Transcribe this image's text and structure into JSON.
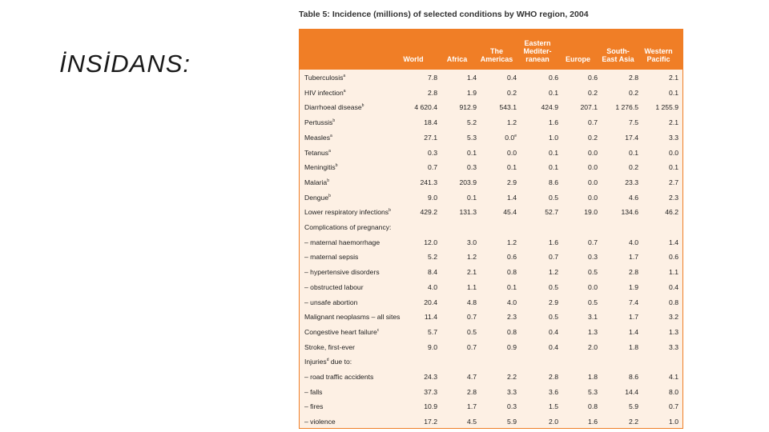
{
  "slide": {
    "title": "İNSİDANS:"
  },
  "table": {
    "caption": "Table 5: Incidence (millions) of selected conditions by WHO region, 2004",
    "columns": [
      "World",
      "Africa",
      "The\nAmericas",
      "Eastern\nMediter-\nranean",
      "Europe",
      "South-\nEast Asia",
      "Western\nPacific"
    ],
    "rows": [
      {
        "label": "Tuberculosis",
        "sup": "a",
        "values": [
          "7.8",
          "1.4",
          "0.4",
          "0.6",
          "0.6",
          "2.8",
          "2.1"
        ]
      },
      {
        "label": "HIV infection",
        "sup": "a",
        "values": [
          "2.8",
          "1.9",
          "0.2",
          "0.1",
          "0.2",
          "0.2",
          "0.1"
        ]
      },
      {
        "label": "Diarrhoeal disease",
        "sup": "b",
        "values": [
          "4 620.4",
          "912.9",
          "543.1",
          "424.9",
          "207.1",
          "1 276.5",
          "1 255.9"
        ]
      },
      {
        "label": "Pertussis",
        "sup": "b",
        "values": [
          "18.4",
          "5.2",
          "1.2",
          "1.6",
          "0.7",
          "7.5",
          "2.1"
        ]
      },
      {
        "label": "Measles",
        "sup": "a",
        "values": [
          "27.1",
          "5.3",
          "0.0",
          "1.0",
          "0.2",
          "17.4",
          "3.3"
        ],
        "value_sup": {
          "2": "e"
        }
      },
      {
        "label": "Tetanus",
        "sup": "a",
        "values": [
          "0.3",
          "0.1",
          "0.0",
          "0.1",
          "0.0",
          "0.1",
          "0.0"
        ]
      },
      {
        "label": "Meningitis",
        "sup": "b",
        "values": [
          "0.7",
          "0.3",
          "0.1",
          "0.1",
          "0.0",
          "0.2",
          "0.1"
        ]
      },
      {
        "label": "Malaria",
        "sup": "b",
        "values": [
          "241.3",
          "203.9",
          "2.9",
          "8.6",
          "0.0",
          "23.3",
          "2.7"
        ]
      },
      {
        "label": "Dengue",
        "sup": "b",
        "values": [
          "9.0",
          "0.1",
          "1.4",
          "0.5",
          "0.0",
          "4.6",
          "2.3"
        ]
      },
      {
        "label": "Lower respiratory infections",
        "sup": "b",
        "values": [
          "429.2",
          "131.3",
          "45.4",
          "52.7",
          "19.0",
          "134.6",
          "46.2"
        ]
      },
      {
        "label": "Complications of pregnancy:",
        "sup": "",
        "values": [
          "",
          "",
          "",
          "",
          "",
          "",
          ""
        ]
      },
      {
        "label": "– maternal haemorrhage",
        "sup": "",
        "values": [
          "12.0",
          "3.0",
          "1.2",
          "1.6",
          "0.7",
          "4.0",
          "1.4"
        ]
      },
      {
        "label": "– maternal sepsis",
        "sup": "",
        "values": [
          "5.2",
          "1.2",
          "0.6",
          "0.7",
          "0.3",
          "1.7",
          "0.6"
        ]
      },
      {
        "label": "– hypertensive disorders",
        "sup": "",
        "values": [
          "8.4",
          "2.1",
          "0.8",
          "1.2",
          "0.5",
          "2.8",
          "1.1"
        ]
      },
      {
        "label": "– obstructed labour",
        "sup": "",
        "values": [
          "4.0",
          "1.1",
          "0.1",
          "0.5",
          "0.0",
          "1.9",
          "0.4"
        ]
      },
      {
        "label": "– unsafe abortion",
        "sup": "",
        "values": [
          "20.4",
          "4.8",
          "4.0",
          "2.9",
          "0.5",
          "7.4",
          "0.8"
        ]
      },
      {
        "label": "Malignant neoplasms – all sites",
        "sup": "",
        "values": [
          "11.4",
          "0.7",
          "2.3",
          "0.5",
          "3.1",
          "1.7",
          "3.2"
        ]
      },
      {
        "label": "Congestive heart failure",
        "sup": "c",
        "values": [
          "5.7",
          "0.5",
          "0.8",
          "0.4",
          "1.3",
          "1.4",
          "1.3"
        ]
      },
      {
        "label": "Stroke, first-ever",
        "sup": "",
        "values": [
          "9.0",
          "0.7",
          "0.9",
          "0.4",
          "2.0",
          "1.8",
          "3.3"
        ]
      },
      {
        "label": "Injuries",
        "sup": "d",
        "label_suffix": " due to:",
        "values": [
          "",
          "",
          "",
          "",
          "",
          "",
          ""
        ]
      },
      {
        "label": "– road traffic accidents",
        "sup": "",
        "values": [
          "24.3",
          "4.7",
          "2.2",
          "2.8",
          "1.8",
          "8.6",
          "4.1"
        ]
      },
      {
        "label": "– falls",
        "sup": "",
        "values": [
          "37.3",
          "2.8",
          "3.3",
          "3.6",
          "5.3",
          "14.4",
          "8.0"
        ]
      },
      {
        "label": "– fires",
        "sup": "",
        "values": [
          "10.9",
          "1.7",
          "0.3",
          "1.5",
          "0.8",
          "5.9",
          "0.7"
        ]
      },
      {
        "label": "– violence",
        "sup": "",
        "values": [
          "17.2",
          "4.5",
          "5.9",
          "2.0",
          "1.6",
          "2.2",
          "1.0"
        ]
      }
    ]
  },
  "colors": {
    "header_bg": "#f07e26",
    "body_bg": "#fdf0e4",
    "border": "#f07e26"
  }
}
